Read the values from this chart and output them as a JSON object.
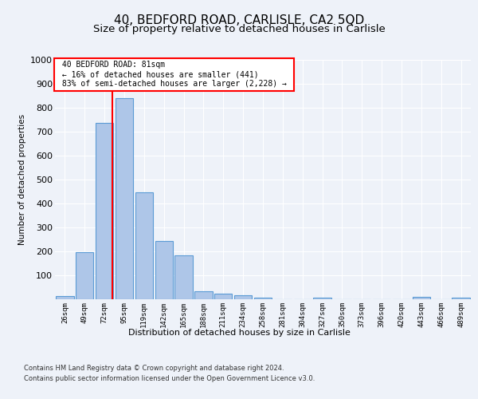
{
  "title1": "40, BEDFORD ROAD, CARLISLE, CA2 5QD",
  "title2": "Size of property relative to detached houses in Carlisle",
  "xlabel": "Distribution of detached houses by size in Carlisle",
  "ylabel": "Number of detached properties",
  "bar_labels": [
    "26sqm",
    "49sqm",
    "72sqm",
    "95sqm",
    "119sqm",
    "142sqm",
    "165sqm",
    "188sqm",
    "211sqm",
    "234sqm",
    "258sqm",
    "281sqm",
    "304sqm",
    "327sqm",
    "350sqm",
    "373sqm",
    "396sqm",
    "420sqm",
    "443sqm",
    "466sqm",
    "489sqm"
  ],
  "bar_values": [
    15,
    197,
    737,
    840,
    447,
    242,
    182,
    33,
    22,
    18,
    6,
    0,
    0,
    8,
    0,
    0,
    0,
    0,
    9,
    0,
    8
  ],
  "bar_color": "#aec6e8",
  "bar_edge_color": "#5b9bd5",
  "annotation_line1": "40 BEDFORD ROAD: 81sqm",
  "annotation_line2": "← 16% of detached houses are smaller (441)",
  "annotation_line3": "83% of semi-detached houses are larger (2,228) →",
  "box_color": "#cc0000",
  "footnote1": "Contains HM Land Registry data © Crown copyright and database right 2024.",
  "footnote2": "Contains public sector information licensed under the Open Government Licence v3.0.",
  "ylim": [
    0,
    1000
  ],
  "yticks": [
    0,
    100,
    200,
    300,
    400,
    500,
    600,
    700,
    800,
    900,
    1000
  ],
  "title1_fontsize": 11,
  "title2_fontsize": 9.5,
  "background_color": "#eef2f9",
  "plot_bg_color": "#eef2f9"
}
